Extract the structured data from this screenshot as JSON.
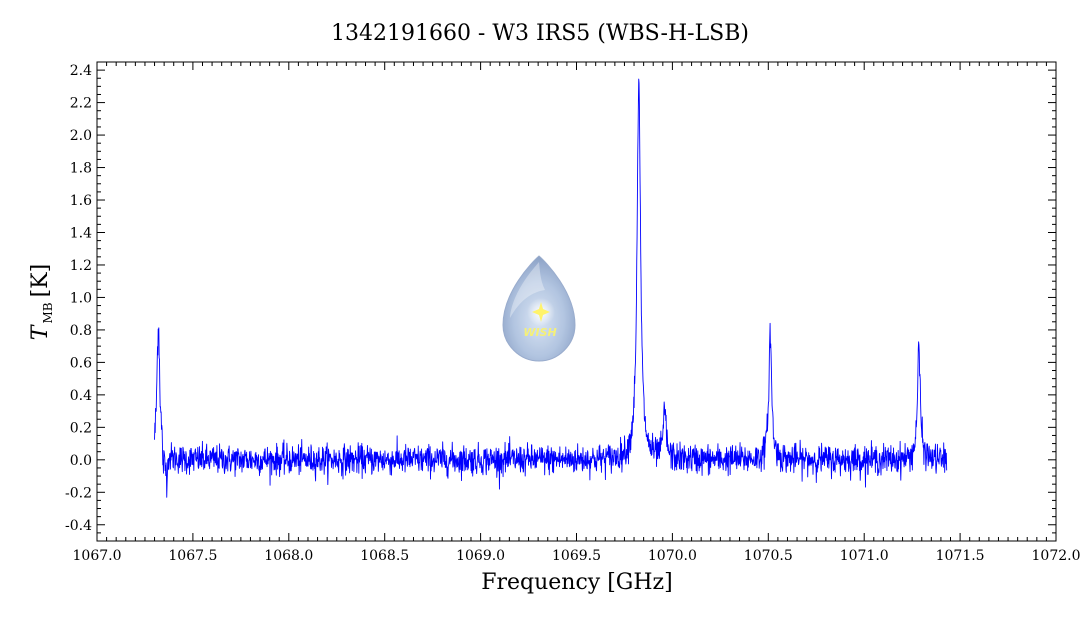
{
  "chart_data": {
    "type": "line",
    "title": "1342191660 - W3 IRS5 (WBS-H-LSB)",
    "xlabel": "Frequency [GHz]",
    "ylabel_symbol": "T",
    "ylabel_subscript": "MB",
    "ylabel_unit": "[K]",
    "xlim": [
      1067.0,
      1072.0
    ],
    "ylim": [
      -0.5,
      2.45
    ],
    "x_ticks": [
      1067.0,
      1067.5,
      1068.0,
      1068.5,
      1069.0,
      1069.5,
      1070.0,
      1070.5,
      1071.0,
      1071.5,
      1072.0
    ],
    "x_tick_labels": [
      "1067.0",
      "1067.5",
      "1068.0",
      "1068.5",
      "1069.0",
      "1069.5",
      "1070.0",
      "1070.5",
      "1071.0",
      "1071.5",
      "1072.0"
    ],
    "y_ticks": [
      -0.4,
      -0.2,
      0.0,
      0.2,
      0.4,
      0.6,
      0.8,
      1.0,
      1.2,
      1.4,
      1.6,
      1.8,
      2.0,
      2.2,
      2.4
    ],
    "y_tick_labels": [
      "-0.4",
      "-0.2",
      "0.0",
      "0.2",
      "0.4",
      "0.6",
      "0.8",
      "1.0",
      "1.2",
      "1.4",
      "1.6",
      "1.8",
      "2.0",
      "2.2",
      "2.4"
    ],
    "series": [
      {
        "color": "#0000ff",
        "x_range": [
          1067.3,
          1071.43
        ],
        "peaks": [
          {
            "center": 1067.32,
            "amplitude": 0.85
          },
          {
            "center": 1069.825,
            "amplitude": 2.3
          },
          {
            "center": 1069.96,
            "amplitude": 0.3
          },
          {
            "center": 1070.51,
            "amplitude": 0.78
          },
          {
            "center": 1071.285,
            "amplitude": 0.68
          }
        ],
        "noise_rms": 0.045
      }
    ],
    "grid": false,
    "legend": "none"
  },
  "logo": {
    "text": "WISH"
  }
}
